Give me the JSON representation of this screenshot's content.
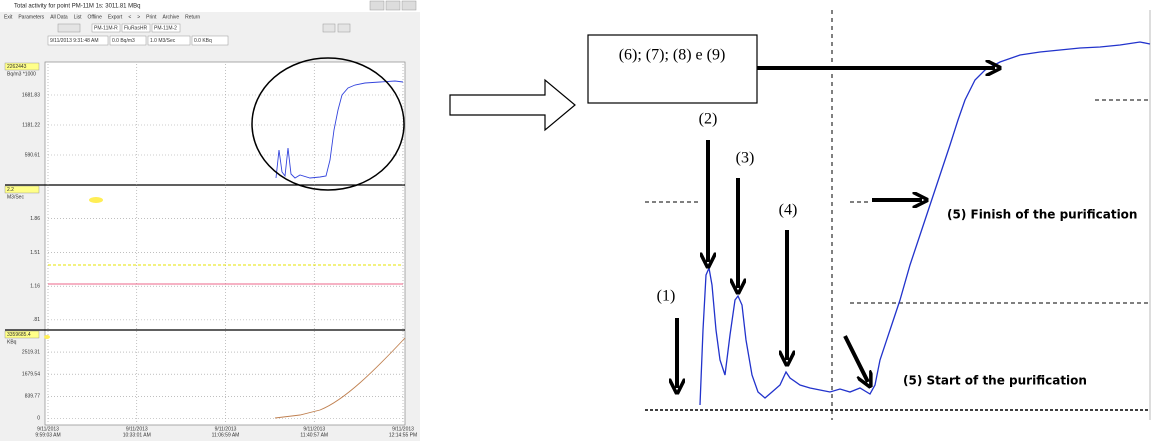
{
  "window": {
    "title": "Total activity for point PM-11M 1s: 3011.81 MBq",
    "menu": [
      "Exit",
      "Parameters",
      "All Data",
      "List",
      "Offline",
      "Export",
      "<",
      ">",
      "Print",
      "Archive",
      "Return"
    ],
    "channels": [
      "PM-11M-R",
      "FluRasHR",
      "PM-11M-2"
    ],
    "fields": [
      "9/11/2013 9:31:48 AM",
      "0.0 Bq/m3",
      "1.0 M3/Sec",
      "0.0 KBq"
    ],
    "panels": [
      {
        "max": "2262443",
        "unit": "Bq/m3 *1000",
        "ticks": [
          "1681.83",
          "1181.22",
          "590.61"
        ]
      },
      {
        "max": "2.2",
        "unit": "M3/Sec",
        "ticks": [
          "1.86",
          "1.51",
          "1.16",
          ".81"
        ]
      },
      {
        "max": "3359685.4",
        "unit": "KBq",
        "ticks": [
          "2519.31",
          "1679.54",
          "839.77",
          "0"
        ]
      }
    ],
    "x_labels": [
      [
        "9/11/2013",
        "9:59:03 AM"
      ],
      [
        "9/11/2013",
        "10:33:01 AM"
      ],
      [
        "9/11/2013",
        "11:06:59 AM"
      ],
      [
        "9/11/2013",
        "11:40:57 AM"
      ],
      [
        "9/11/2013",
        "12:14:55 PM"
      ]
    ]
  },
  "zoom": {
    "box": "(6); (7); (8) e (9)",
    "labels": [
      "(1)",
      "(2)",
      "(3)",
      "(4)"
    ],
    "finish": "(5) Finish of the purification",
    "start": "(5) Start of the purification"
  }
}
